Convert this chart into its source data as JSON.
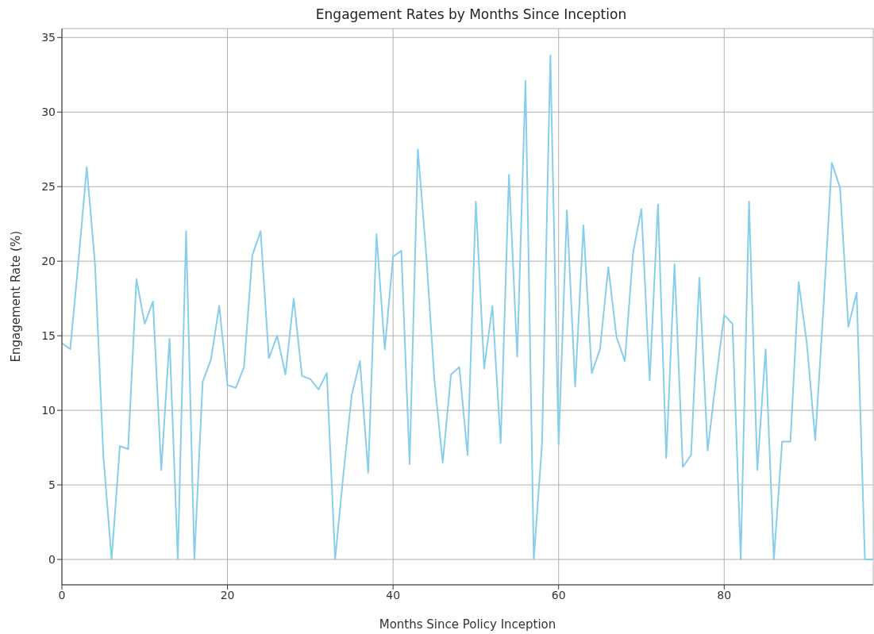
{
  "chart_data": {
    "type": "line",
    "title": "Engagement Rates by Months Since Inception",
    "xlabel": "Months Since Policy Inception",
    "ylabel": "Engagement Rate (%)",
    "x": [
      0,
      1,
      2,
      3,
      4,
      5,
      6,
      7,
      8,
      9,
      10,
      11,
      12,
      13,
      14,
      15,
      16,
      17,
      18,
      19,
      20,
      21,
      22,
      23,
      24,
      25,
      26,
      27,
      28,
      29,
      30,
      31,
      32,
      33,
      34,
      35,
      36,
      37,
      38,
      39,
      40,
      41,
      42,
      43,
      44,
      45,
      46,
      47,
      48,
      49,
      50,
      51,
      52,
      53,
      54,
      55,
      56,
      57,
      58,
      59,
      60,
      61,
      62,
      63,
      64,
      65,
      66,
      67,
      68,
      69,
      70,
      71,
      72,
      73,
      74,
      75,
      76,
      77,
      78,
      79,
      80,
      81,
      82,
      83,
      84,
      85,
      86,
      87,
      88,
      89,
      90,
      91,
      92,
      93,
      94,
      95,
      96,
      97,
      98
    ],
    "series": [
      {
        "color": "#87ceeb",
        "values": [
          14.5,
          14.1,
          20,
          26.3,
          19.8,
          7,
          0,
          7.6,
          7.4,
          18.8,
          15.8,
          17.3,
          6,
          14.8,
          0,
          22,
          0,
          11.9,
          13.4,
          17,
          11.7,
          11.5,
          12.9,
          20.4,
          22,
          13.5,
          15,
          12.4,
          17.5,
          12.3,
          12.1,
          11.4,
          12.5,
          0,
          5.7,
          11,
          13.3,
          5.8,
          21.8,
          14.1,
          20.3,
          20.7,
          6.4,
          27.5,
          20.5,
          12,
          6.5,
          12.4,
          12.9,
          7,
          24,
          12.8,
          17,
          7.8,
          25.8,
          13.6,
          32.1,
          0,
          7.8,
          33.8,
          7.7,
          23.4,
          11.6,
          22.4,
          12.5,
          14.1,
          19.6,
          14.9,
          13.3,
          20.6,
          23.5,
          12,
          23.8,
          6.8,
          19.8,
          6.2,
          7,
          18.9,
          7.3,
          12,
          16.4,
          15.8,
          0,
          24,
          6,
          14.1,
          0,
          7.9,
          7.9,
          18.6,
          14.4,
          8,
          17,
          26.6,
          24.9,
          15.6,
          17.9,
          0,
          0
        ]
      }
    ],
    "xlim": [
      0,
      98
    ],
    "xticks": [
      0,
      20,
      40,
      60,
      80
    ],
    "ylim": [
      -1.7,
      35.6
    ],
    "yticks": [
      0,
      5,
      10,
      15,
      20,
      25,
      30,
      35
    ],
    "grid": true,
    "marker": "none",
    "line_style": "solid"
  }
}
